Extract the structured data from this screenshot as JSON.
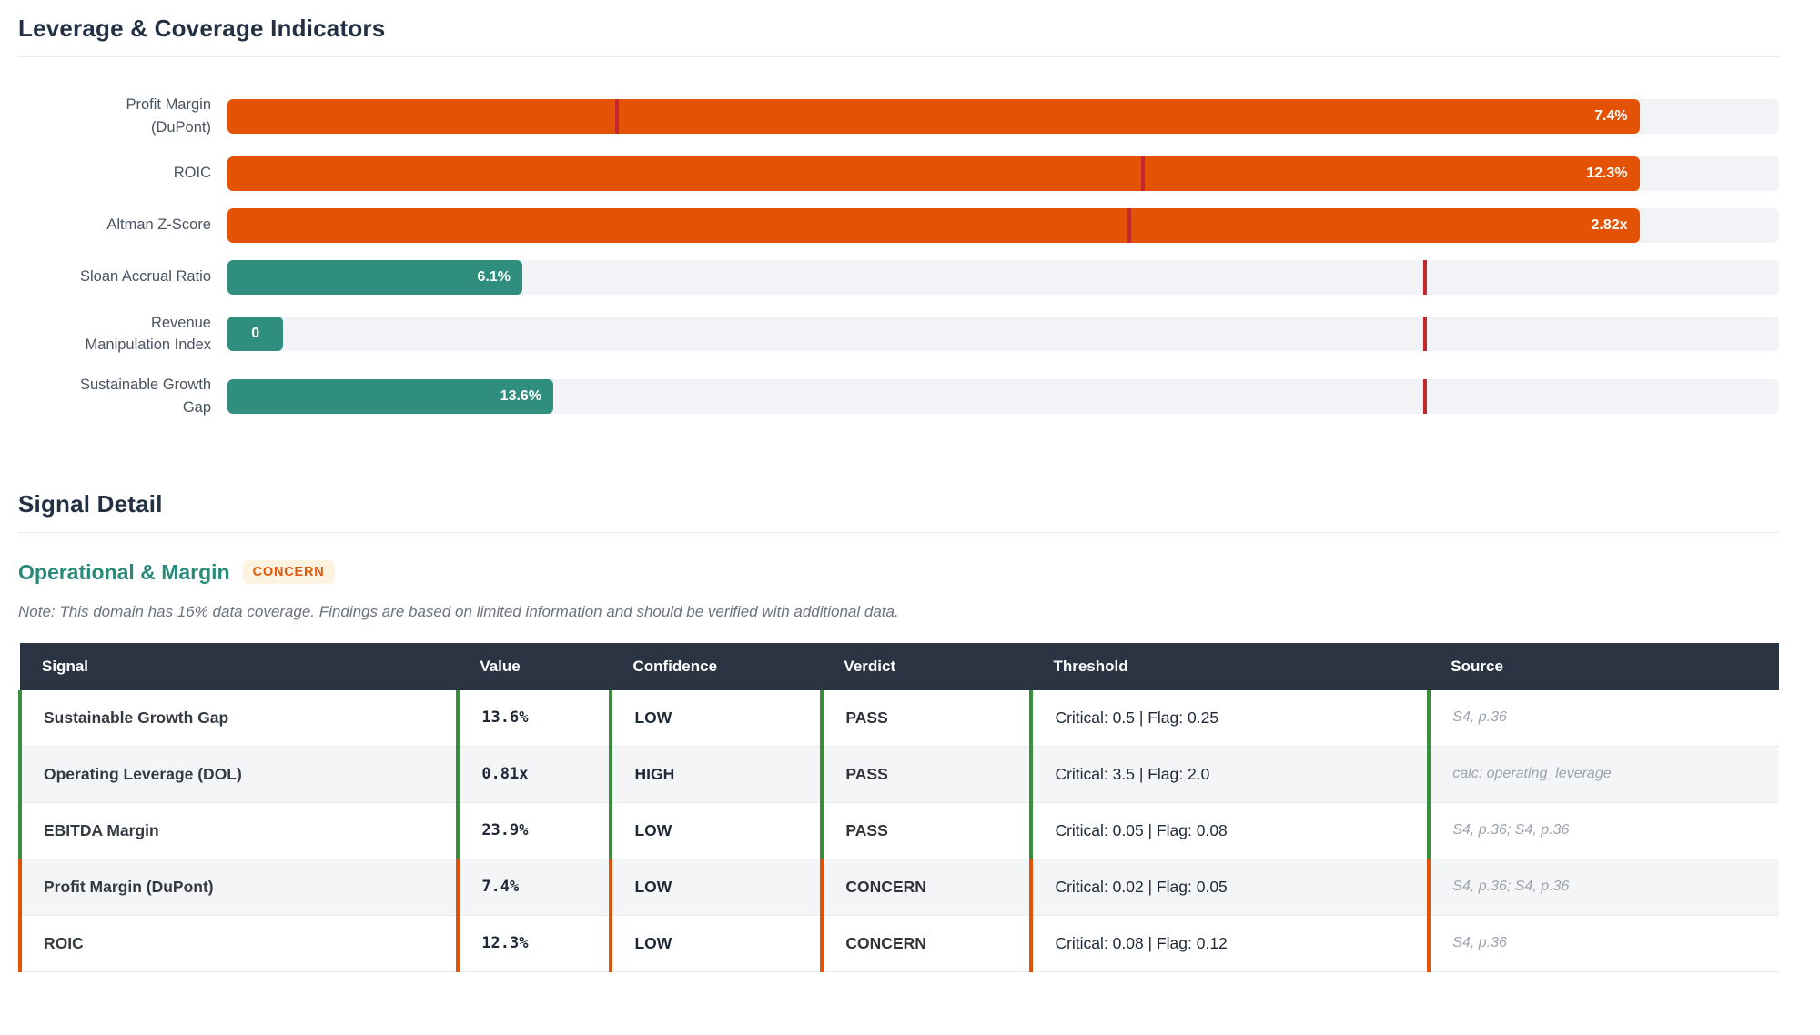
{
  "leverage_section": {
    "title": "Leverage & Coverage Indicators"
  },
  "chart_data": {
    "type": "bar",
    "orientation": "horizontal",
    "title": "Leverage & Coverage Indicators",
    "grid": false,
    "legend": false,
    "colors": {
      "bad": "#e35205",
      "good": "#2f8e7d",
      "marker": "#c02a2e",
      "track": "#f1f3f6"
    },
    "bars": [
      {
        "label": "Profit Margin\n(DuPont)",
        "value_label": "7.4%",
        "value": 7.4,
        "unit": "%",
        "color": "bad",
        "bar_pct": 91,
        "marker_pct": 25.1
      },
      {
        "label": "ROIC",
        "value_label": "12.3%",
        "value": 12.3,
        "unit": "%",
        "color": "bad",
        "bar_pct": 91,
        "marker_pct": 59
      },
      {
        "label": "Altman Z-Score",
        "value_label": "2.82x",
        "value": 2.82,
        "unit": "x",
        "color": "bad",
        "bar_pct": 91,
        "marker_pct": 58.1
      },
      {
        "label": "Sloan Accrual Ratio",
        "value_label": "6.1%",
        "value": 6.1,
        "unit": "%",
        "color": "good",
        "bar_pct": 19,
        "marker_pct": 77.2
      },
      {
        "label": "Revenue\nManipulation Index",
        "value_label": "0",
        "value": 0,
        "unit": "",
        "color": "good",
        "bar_pct": 3.6,
        "marker_pct": 77.2
      },
      {
        "label": "Sustainable Growth\nGap",
        "value_label": "13.6%",
        "value": 13.6,
        "unit": "%",
        "color": "good",
        "bar_pct": 21,
        "marker_pct": 77.2
      }
    ]
  },
  "signal_detail": {
    "title": "Signal Detail",
    "domain_title": "Operational & Margin",
    "badge": "CONCERN",
    "note": "Note: This domain has 16% data coverage. Findings are based on limited information and should be verified with additional data."
  },
  "signal_table": {
    "headers": {
      "signal": "Signal",
      "value": "Value",
      "confidence": "Confidence",
      "verdict": "Verdict",
      "threshold": "Threshold",
      "source": "Source"
    },
    "accent_colors": {
      "green": "#388e3c",
      "orange": "#e35205"
    },
    "rows": [
      {
        "signal": "Sustainable Growth Gap",
        "value": "13.6%",
        "confidence": "LOW",
        "verdict": "PASS",
        "threshold": "Critical: 0.5 | Flag: 0.25",
        "source": "S4, p.36",
        "accent": "green",
        "value_color": "green",
        "confidence_color": "red"
      },
      {
        "signal": "Operating Leverage (DOL)",
        "value": "0.81x",
        "confidence": "HIGH",
        "verdict": "PASS",
        "threshold": "Critical: 3.5 | Flag: 2.0",
        "source": "calc: operating_leverage",
        "accent": "green",
        "value_color": "green",
        "confidence_color": "green"
      },
      {
        "signal": "EBITDA Margin",
        "value": "23.9%",
        "confidence": "LOW",
        "verdict": "PASS",
        "threshold": "Critical: 0.05 | Flag: 0.08",
        "source": "S4, p.36; S4, p.36",
        "accent": "green",
        "value_color": "green",
        "confidence_color": "red"
      },
      {
        "signal": "Profit Margin (DuPont)",
        "value": "7.4%",
        "confidence": "LOW",
        "verdict": "CONCERN",
        "threshold": "Critical: 0.02 | Flag: 0.05",
        "source": "S4, p.36; S4, p.36",
        "accent": "orange",
        "value_color": "orange",
        "confidence_color": "red"
      },
      {
        "signal": "ROIC",
        "value": "12.3%",
        "confidence": "LOW",
        "verdict": "CONCERN",
        "threshold": "Critical: 0.08 | Flag: 0.12",
        "source": "S4, p.36",
        "accent": "orange",
        "value_color": "orange",
        "confidence_color": "red"
      }
    ]
  }
}
